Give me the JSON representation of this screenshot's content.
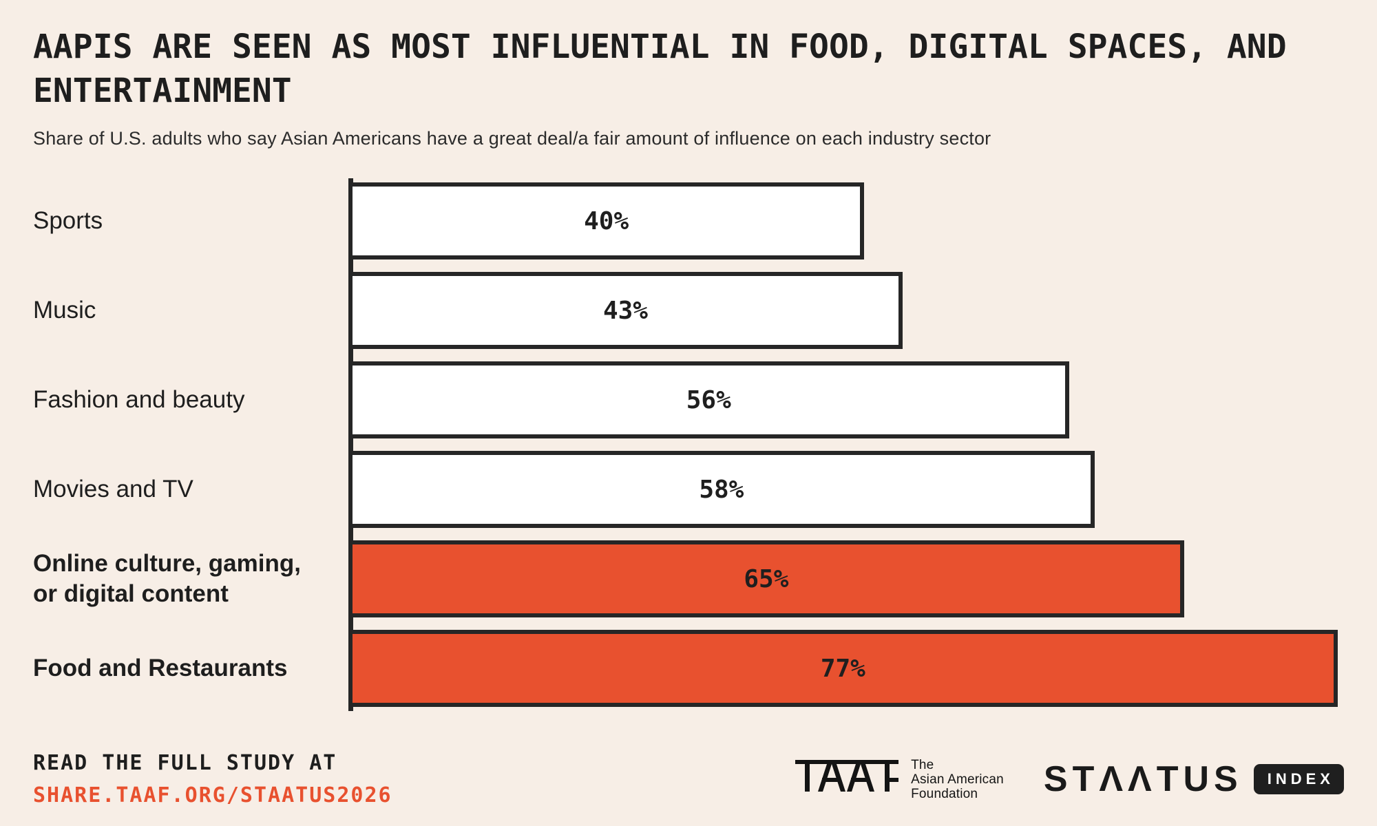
{
  "header": {
    "title": "AAPIS ARE SEEN AS MOST INFLUENTIAL IN FOOD, DIGITAL SPACES, AND ENTERTAINMENT",
    "subtitle": "Share of U.S. adults who say Asian Americans have a great deal/a fair amount of influence on each industry sector"
  },
  "chart_data": {
    "type": "bar",
    "orientation": "horizontal",
    "title": "AAPIS ARE SEEN AS MOST INFLUENTIAL IN FOOD, DIGITAL SPACES, AND ENTERTAINMENT",
    "subtitle": "Share of U.S. adults who say Asian Americans have a great deal/a fair amount of influence on each industry sector",
    "categories": [
      "Sports",
      "Music",
      "Fashion and beauty",
      "Movies and TV",
      "Online culture, gaming, or digital content",
      "Food and Restaurants"
    ],
    "values": [
      40,
      43,
      56,
      58,
      65,
      77
    ],
    "value_labels": [
      "40%",
      "43%",
      "56%",
      "58%",
      "65%",
      "77%"
    ],
    "highlighted": [
      false,
      false,
      false,
      false,
      true,
      true
    ],
    "bold_categories": [
      false,
      false,
      false,
      false,
      true,
      true
    ],
    "value_label_position": "center",
    "xlim": [
      0,
      77.5
    ],
    "gridlines": false,
    "legend": "none",
    "colors": {
      "bar_default": "#FFFFFF",
      "bar_highlight": "#E8512F",
      "bar_border": "#262626",
      "axis": "#262626",
      "value_text": "#1F1F1F",
      "background": "#F7EEE6"
    }
  },
  "footer": {
    "read_label": "READ THE FULL STUDY AT",
    "study_url": "SHARE.TAAF.ORG/STAATUS2026",
    "url_color": "#E8512F",
    "taaf": {
      "logo": "taaf-logo",
      "name_line1": "The",
      "name_line2": "Asian American",
      "name_line3": "Foundation"
    },
    "staatus": {
      "wordmark": "STAATUS",
      "wordmark_display": "STΛΛTUS",
      "badge": "INDEX"
    }
  }
}
